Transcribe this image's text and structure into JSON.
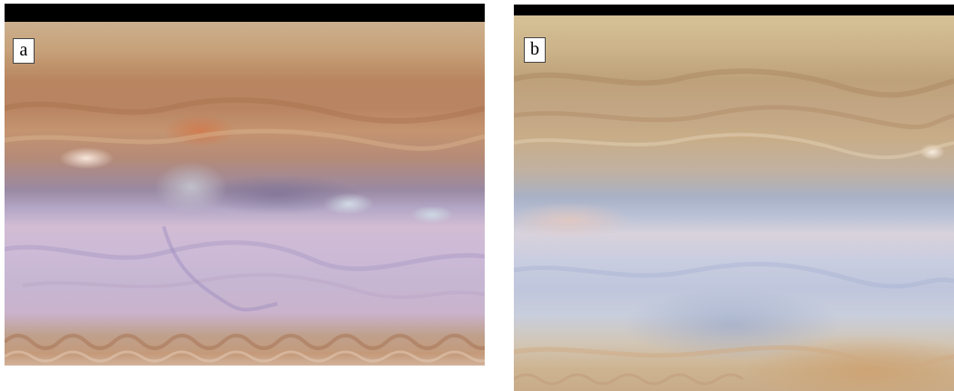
{
  "panels": [
    {
      "label": "a"
    },
    {
      "label": "b"
    }
  ],
  "colors": {
    "space": "#000000",
    "panel_a_top": "#c7a27a",
    "panel_a_middle": "#cbb9d6",
    "panel_b_top": "#cdb48a",
    "panel_b_middle": "#c9cde0"
  }
}
